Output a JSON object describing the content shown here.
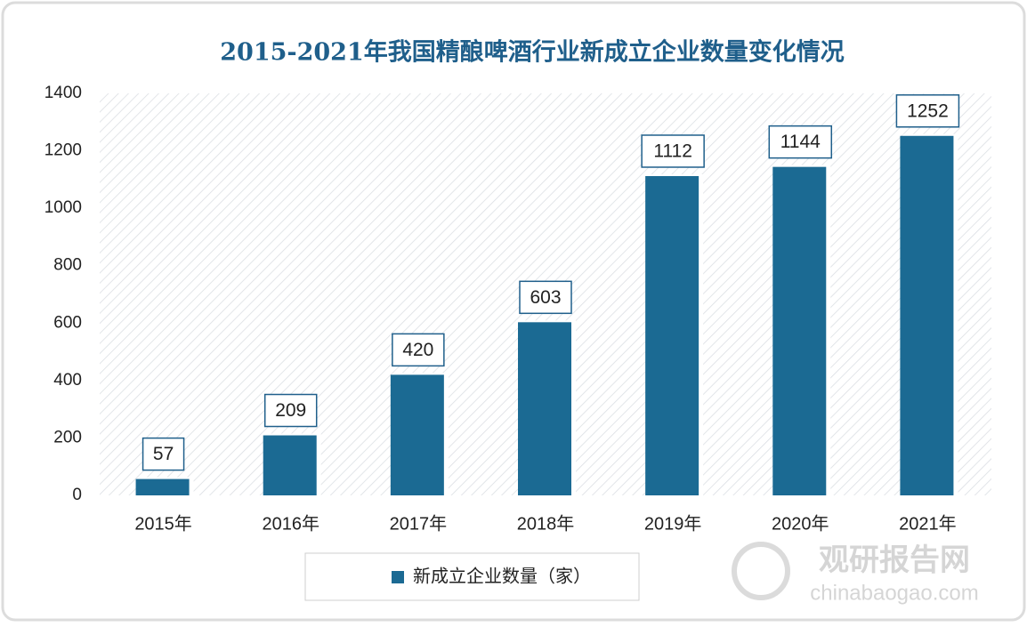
{
  "chart_data": {
    "type": "bar",
    "title": "2015-2021年我国精酿啤酒行业新成立企业数量变化情况",
    "categories": [
      "2015年",
      "2016年",
      "2017年",
      "2018年",
      "2019年",
      "2020年",
      "2021年"
    ],
    "series": [
      {
        "name": "新成立企业数量（家）",
        "color": "#1b6a93",
        "values": [
          57,
          209,
          420,
          603,
          1112,
          1144,
          1252
        ]
      }
    ],
    "ylim": [
      0,
      1400
    ],
    "yticks": [
      0,
      200,
      400,
      600,
      800,
      1000,
      1200,
      1400
    ],
    "grid": false,
    "legend": "bottom",
    "watermark": {
      "name": "观研报告网",
      "url": "chinabaogao.com"
    }
  }
}
